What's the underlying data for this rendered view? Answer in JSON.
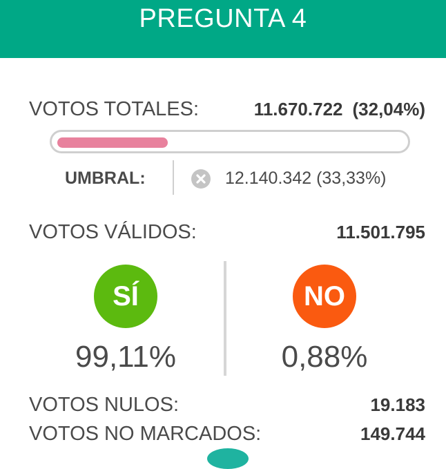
{
  "header": {
    "title": "PREGUNTA 4"
  },
  "totals": {
    "label": "VOTOS TOTALES:",
    "count": "11.670.722",
    "percent": "(32,04%)",
    "progress_fraction": 0.3204,
    "progress_color": "#e8819d"
  },
  "threshold": {
    "label": "UMBRAL:",
    "status_icon": "x-circle-icon",
    "value": "12.140.342 (33,33%)"
  },
  "valid_votes": {
    "label": "VOTOS VÁLIDOS:",
    "value": "11.501.795"
  },
  "options": {
    "si": {
      "label": "SÍ",
      "percent": "99,11%",
      "color": "#5cba0f"
    },
    "no": {
      "label": "NO",
      "percent": "0,88%",
      "color": "#fa5a10"
    }
  },
  "null_votes": {
    "label": "VOTOS NULOS:",
    "value": "19.183"
  },
  "unmarked_votes": {
    "label": "VOTOS NO MARCADOS:",
    "value": "149.744"
  },
  "colors": {
    "header_bg": "#00a886"
  }
}
